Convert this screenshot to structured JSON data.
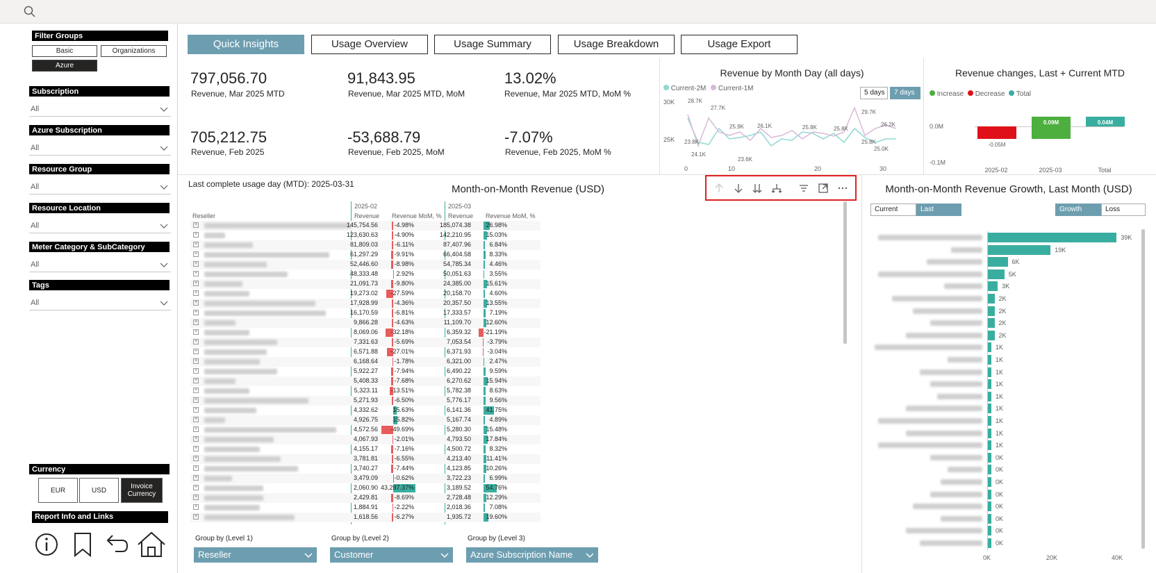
{
  "filter_groups": {
    "title": "Filter Groups",
    "buttons": [
      "Basic",
      "Organizations",
      "Azure"
    ],
    "active": "Azure"
  },
  "slicers": [
    {
      "label": "Subscription",
      "value": "All"
    },
    {
      "label": "Azure Subscription",
      "value": "All"
    },
    {
      "label": "Resource Group",
      "value": "All"
    },
    {
      "label": "Resource Location",
      "value": "All"
    },
    {
      "label": "Meter Category & SubCategory",
      "value": "All"
    },
    {
      "label": "Tags",
      "value": "All"
    }
  ],
  "currency": {
    "title": "Currency",
    "options": [
      "EUR",
      "USD",
      "Invoice Currency"
    ],
    "active": "Invoice Currency"
  },
  "report_info": {
    "title": "Report Info and Links"
  },
  "nav_icons": [
    "info-icon",
    "bookmark-icon",
    "back-icon",
    "home-icon"
  ],
  "tabs": [
    "Quick Insights",
    "Usage Overview",
    "Usage Summary",
    "Usage Breakdown",
    "Usage Export"
  ],
  "active_tab": "Quick Insights",
  "kpis": [
    {
      "value": "797,056.70",
      "label": "Revenue, Mar 2025 MTD"
    },
    {
      "value": "91,843.95",
      "label": "Revenue, Mar 2025 MTD, MoM"
    },
    {
      "value": "13.02%",
      "label": "Revenue, Mar 2025 MTD, MoM %"
    },
    {
      "value": "705,212.75",
      "label": "Revenue, Feb 2025"
    },
    {
      "value": "-53,688.79",
      "label": "Revenue, Feb 2025, MoM"
    },
    {
      "value": "-7.07%",
      "label": "Revenue, Feb 2025, MoM %"
    }
  ],
  "line_chart": {
    "title": "Revenue by Month Day (all days)",
    "legend": [
      "Current-2M",
      "Current-1M"
    ],
    "toggle": [
      "5 days",
      "7 days"
    ],
    "active_toggle": "7 days",
    "y_ticks": [
      "30K",
      "25K"
    ],
    "x_ticks": [
      "0",
      "10",
      "20",
      "30"
    ],
    "data_labels": [
      "28.7K",
      "27.7K",
      "25.9K",
      "23.8K",
      "24.1K",
      "26.1K",
      "23.6K",
      "25.8K",
      "25.8K",
      "29.7K",
      "25.8K",
      "25.0K",
      "26.2K"
    ],
    "colors": {
      "current_2m": "#8fd8d2",
      "current_1m": "#d8b9d8"
    }
  },
  "waterfall": {
    "title": "Revenue changes, Last + Current MTD",
    "legend": [
      "Increase",
      "Decrease",
      "Total"
    ],
    "y_ticks": [
      "0.0M",
      "-0.1M"
    ],
    "categories": [
      "2025-02",
      "2025-03",
      "Total"
    ],
    "values": [
      -0.05,
      0.09,
      0.04
    ],
    "labels": [
      "-0.05M",
      "0.09M",
      "0.04M"
    ],
    "colors": {
      "increase": "#4caf3e",
      "decrease": "#e0101a",
      "total": "#39aea0"
    }
  },
  "last_complete_day": "Last complete usage day (MTD): 2025-03-31",
  "matrix": {
    "title": "Month-on-Month Revenue (USD)",
    "col_group_1": "2025-02",
    "col_group_2": "2025-03",
    "headers": [
      "Reseller",
      "Revenue",
      "Revenue MoM, %",
      "Revenue",
      "Revenue MoM, %"
    ],
    "rows": [
      {
        "w": 212,
        "rev1": "145,754.56",
        "mom1": "-4.98%",
        "rev2": "185,074.38",
        "mom2": "26.98%",
        "b1": -4.98,
        "b2": 26.98
      },
      {
        "w": 30,
        "rev1": "123,630.63",
        "mom1": "-4.90%",
        "rev2": "142,210.95",
        "mom2": "15.03%",
        "b1": -4.9,
        "b2": 15.03
      },
      {
        "w": 70,
        "rev1": "81,809.03",
        "mom1": "-6.11%",
        "rev2": "87,407.96",
        "mom2": "6.84%",
        "b1": -6.11,
        "b2": 6.84
      },
      {
        "w": 180,
        "rev1": "61,297.29",
        "mom1": "-9.91%",
        "rev2": "66,404.58",
        "mom2": "8.33%",
        "b1": -9.91,
        "b2": 8.33
      },
      {
        "w": 90,
        "rev1": "52,446.60",
        "mom1": "-8.98%",
        "rev2": "54,785.34",
        "mom2": "4.46%",
        "b1": -8.98,
        "b2": 4.46
      },
      {
        "w": 120,
        "rev1": "48,333.48",
        "mom1": "2.92%",
        "rev2": "50,051.63",
        "mom2": "3.55%",
        "b1": 2.92,
        "b2": 3.55
      },
      {
        "w": 55,
        "rev1": "21,091.73",
        "mom1": "-9.80%",
        "rev2": "24,385.00",
        "mom2": "15.61%",
        "b1": -9.8,
        "b2": 15.61
      },
      {
        "w": 65,
        "rev1": "19,273.02",
        "mom1": "-27.59%",
        "rev2": "20,158.70",
        "mom2": "4.60%",
        "b1": -27.59,
        "b2": 4.6
      },
      {
        "w": 160,
        "rev1": "17,928.99",
        "mom1": "-4.36%",
        "rev2": "20,357.50",
        "mom2": "13.55%",
        "b1": -4.36,
        "b2": 13.55
      },
      {
        "w": 175,
        "rev1": "16,170.59",
        "mom1": "-6.81%",
        "rev2": "17,333.57",
        "mom2": "7.19%",
        "b1": -6.81,
        "b2": 7.19
      },
      {
        "w": 45,
        "rev1": "9,866.28",
        "mom1": "-4.63%",
        "rev2": "11,109.70",
        "mom2": "12.60%",
        "b1": -4.63,
        "b2": 12.6
      },
      {
        "w": 65,
        "rev1": "8,069.06",
        "mom1": "-32.18%",
        "rev2": "6,359.32",
        "mom2": "-21.19%",
        "b1": -32.18,
        "b2": -21.19
      },
      {
        "w": 105,
        "rev1": "7,331.63",
        "mom1": "-5.69%",
        "rev2": "7,053.54",
        "mom2": "-3.79%",
        "b1": -5.69,
        "b2": -3.79
      },
      {
        "w": 90,
        "rev1": "6,571.88",
        "mom1": "-27.01%",
        "rev2": "6,371.93",
        "mom2": "-3.04%",
        "b1": -27.01,
        "b2": -3.04
      },
      {
        "w": 80,
        "rev1": "6,168.64",
        "mom1": "-1.78%",
        "rev2": "6,321.00",
        "mom2": "2.47%",
        "b1": -1.78,
        "b2": 2.47
      },
      {
        "w": 105,
        "rev1": "5,922.27",
        "mom1": "-7.94%",
        "rev2": "6,490.22",
        "mom2": "9.59%",
        "b1": -7.94,
        "b2": 9.59
      },
      {
        "w": 45,
        "rev1": "5,408.33",
        "mom1": "-7.68%",
        "rev2": "6,270.62",
        "mom2": "15.94%",
        "b1": -7.68,
        "b2": 15.94
      },
      {
        "w": 65,
        "rev1": "5,323.11",
        "mom1": "-13.51%",
        "rev2": "5,782.38",
        "mom2": "8.63%",
        "b1": -13.51,
        "b2": 8.63
      },
      {
        "w": 150,
        "rev1": "5,271.93",
        "mom1": "-6.50%",
        "rev2": "5,776.17",
        "mom2": "9.56%",
        "b1": -6.5,
        "b2": 9.56
      },
      {
        "w": 75,
        "rev1": "4,332.62",
        "mom1": "15.63%",
        "rev2": "6,141.36",
        "mom2": "41.75%",
        "b1": 15.63,
        "b2": 41.75
      },
      {
        "w": 30,
        "rev1": "4,926.75",
        "mom1": "15.82%",
        "rev2": "5,167.74",
        "mom2": "4.89%",
        "b1": 15.82,
        "b2": 4.89
      },
      {
        "w": 190,
        "rev1": "4,572.56",
        "mom1": "-49.69%",
        "rev2": "5,280.30",
        "mom2": "15.48%",
        "b1": -49.69,
        "b2": 15.48
      },
      {
        "w": 100,
        "rev1": "4,067.93",
        "mom1": "-2.01%",
        "rev2": "4,793.50",
        "mom2": "17.84%",
        "b1": -2.01,
        "b2": 17.84
      },
      {
        "w": 80,
        "rev1": "4,155.17",
        "mom1": "-7.16%",
        "rev2": "4,500.72",
        "mom2": "8.32%",
        "b1": -7.16,
        "b2": 8.32
      },
      {
        "w": 110,
        "rev1": "3,781.81",
        "mom1": "-6.55%",
        "rev2": "4,213.40",
        "mom2": "11.41%",
        "b1": -6.55,
        "b2": 11.41
      },
      {
        "w": 135,
        "rev1": "3,740.27",
        "mom1": "-7.44%",
        "rev2": "4,123.85",
        "mom2": "10.26%",
        "b1": -7.44,
        "b2": 10.26
      },
      {
        "w": 40,
        "rev1": "3,479.09",
        "mom1": "-0.62%",
        "rev2": "3,722.23",
        "mom2": "6.99%",
        "b1": -0.62,
        "b2": 6.99
      },
      {
        "w": 85,
        "rev1": "2,060.90",
        "mom1": "43,287.37%",
        "rev2": "3,189.52",
        "mom2": "54.76%",
        "b1": 90,
        "b2": 54.76
      },
      {
        "w": 85,
        "rev1": "2,429.81",
        "mom1": "-8.69%",
        "rev2": "2,728.48",
        "mom2": "12.29%",
        "b1": -8.69,
        "b2": 12.29
      },
      {
        "w": 80,
        "rev1": "1,884.91",
        "mom1": "-2.22%",
        "rev2": "2,018.36",
        "mom2": "7.08%",
        "b1": -2.22,
        "b2": 7.08
      },
      {
        "w": 130,
        "rev1": "1,618.56",
        "mom1": "-6.27%",
        "rev2": "1,935.72",
        "mom2": "19.60%",
        "b1": -6.27,
        "b2": 19.6
      }
    ]
  },
  "group_by": [
    {
      "label": "Group by (Level 1)",
      "value": "Reseller"
    },
    {
      "label": "Group by (Level 2)",
      "value": "Customer"
    },
    {
      "label": "Group by (Level 3)",
      "value": "Azure Subscription Name"
    }
  ],
  "growth_chart": {
    "title": "Month-on-Month Revenue Growth, Last Month (USD)",
    "period_toggle": [
      "Current",
      "Last"
    ],
    "active_period": "Last",
    "type_toggle": [
      "Growth",
      "Loss"
    ],
    "active_type": "Growth",
    "x_ticks": [
      "0K",
      "20K",
      "40K"
    ],
    "x_max": 40000,
    "values": [
      39000,
      19000,
      6000,
      5000,
      3000,
      2000,
      2000,
      2000,
      2000,
      1000,
      1000,
      1000,
      1000,
      1000,
      1000,
      1000,
      1000,
      1000,
      0,
      0,
      0,
      0,
      0,
      0,
      0,
      0
    ],
    "labels": [
      "39K",
      "19K",
      "6K",
      "5K",
      "3K",
      "2K",
      "2K",
      "2K",
      "2K",
      "1K",
      "1K",
      "1K",
      "1K",
      "1K",
      "1K",
      "1K",
      "1K",
      "1K",
      "0K",
      "0K",
      "0K",
      "0K",
      "0K",
      "0K",
      "0K",
      "0K"
    ],
    "color": "#39aea0"
  }
}
